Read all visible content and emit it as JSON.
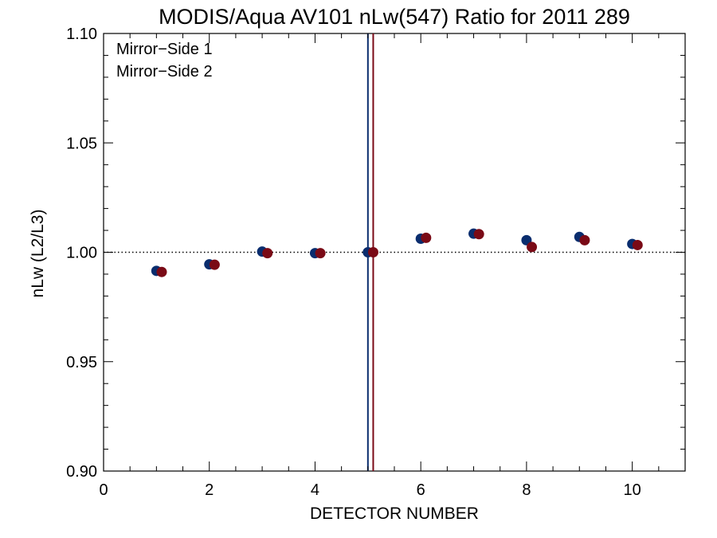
{
  "chart_data": {
    "type": "scatter",
    "title": "MODIS/Aqua AV101 nLw(547) Ratio for 2011 289",
    "xlabel": "DETECTOR NUMBER",
    "ylabel": "nLw (L2/L3)",
    "xlim": [
      0,
      11
    ],
    "ylim": [
      0.9,
      1.1
    ],
    "xticks": [
      0,
      2,
      4,
      6,
      8,
      10
    ],
    "xtick_labels": [
      "0",
      "2",
      "4",
      "6",
      "8",
      "10"
    ],
    "yticks": [
      0.9,
      0.95,
      1.0,
      1.05,
      1.1
    ],
    "ytick_labels": [
      "0.90",
      "0.95",
      "1.00",
      "1.05",
      "1.10"
    ],
    "reference_line": {
      "y": 1.0,
      "style": "dotted"
    },
    "legend_position": "top-left",
    "grid": false,
    "series": [
      {
        "name": "Mirror−Side 1",
        "color": "#0a2d6e",
        "x": [
          1,
          2,
          3,
          4,
          5,
          6,
          7,
          8,
          9,
          10
        ],
        "y": [
          0.9915,
          0.9945,
          1.0003,
          0.9996,
          1.0,
          1.0062,
          1.0085,
          1.0055,
          1.007,
          1.0038
        ],
        "error_bars": [
          {
            "x": 5,
            "low": 0.9,
            "high": 1.1
          }
        ]
      },
      {
        "name": "Mirror−Side 2",
        "color": "#7a0a16",
        "x": [
          1.1,
          2.1,
          3.1,
          4.1,
          5.1,
          6.1,
          7.1,
          8.1,
          9.1,
          10.1
        ],
        "y": [
          0.991,
          0.9943,
          0.9996,
          0.9996,
          1.0,
          1.0066,
          1.0083,
          1.0024,
          1.0055,
          1.0033
        ],
        "error_bars": [
          {
            "x": 5.1,
            "low": 0.9,
            "high": 1.1
          }
        ]
      }
    ]
  }
}
